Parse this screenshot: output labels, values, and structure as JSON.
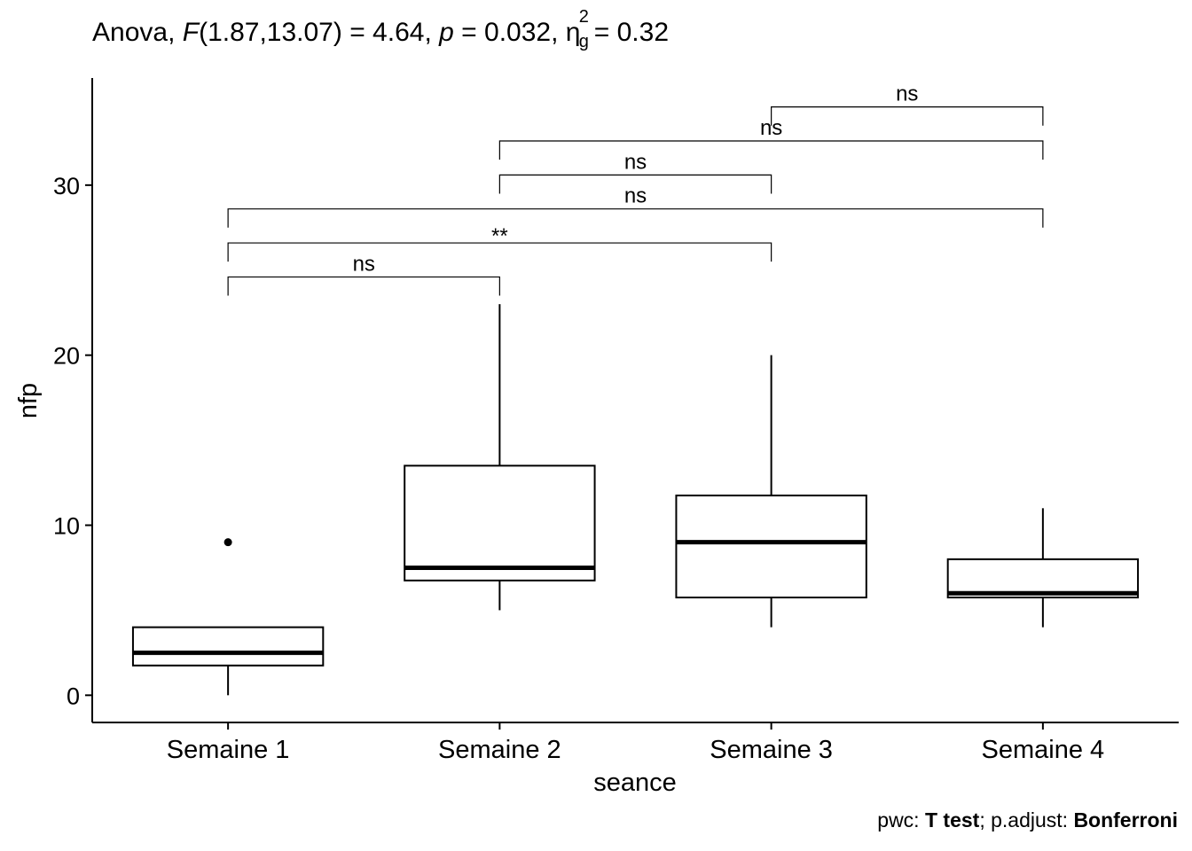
{
  "title": {
    "prefix": "Anova,",
    "f_symbol": "F",
    "df": "(1.87,13.07)",
    "f_value": "= 4.64,",
    "p_symbol": "p",
    "p_value": "= 0.032,",
    "eta_symbol": "η",
    "eta_sup": "2",
    "eta_sub": "g",
    "eta_value": "= 0.32"
  },
  "caption": {
    "pwc_label": "pwc:",
    "test": "T test",
    "sep": "; p.adjust:",
    "method": "Bonferroni"
  },
  "chart_data": {
    "type": "box",
    "xlabel": "seance",
    "ylabel": "nfp",
    "categories": [
      "Semaine 1",
      "Semaine 2",
      "Semaine 3",
      "Semaine 4"
    ],
    "ylim": [
      -1.6,
      36.3
    ],
    "yticks": [
      0,
      10,
      20,
      30
    ],
    "boxes": [
      {
        "min": 0,
        "q1": 1.75,
        "median": 2.5,
        "q3": 4,
        "max": 4,
        "outliers": [
          9
        ]
      },
      {
        "min": 5,
        "q1": 6.75,
        "median": 7.5,
        "q3": 13.5,
        "max": 23,
        "outliers": []
      },
      {
        "min": 4,
        "q1": 5.75,
        "median": 9,
        "q3": 11.75,
        "max": 20,
        "outliers": []
      },
      {
        "min": 4,
        "q1": 5.75,
        "median": 6,
        "q3": 8,
        "max": 11,
        "outliers": []
      }
    ],
    "comparisons": [
      {
        "group1": "Semaine 1",
        "group2": "Semaine 2",
        "y": 24.6,
        "label": "ns"
      },
      {
        "group1": "Semaine 1",
        "group2": "Semaine 3",
        "y": 26.6,
        "label": "**"
      },
      {
        "group1": "Semaine 1",
        "group2": "Semaine 4",
        "y": 28.6,
        "label": "ns"
      },
      {
        "group1": "Semaine 2",
        "group2": "Semaine 3",
        "y": 30.6,
        "label": "ns"
      },
      {
        "group1": "Semaine 2",
        "group2": "Semaine 4",
        "y": 32.6,
        "label": "ns"
      },
      {
        "group1": "Semaine 3",
        "group2": "Semaine 4",
        "y": 34.6,
        "label": "ns"
      }
    ],
    "grid": false,
    "legend": "none"
  }
}
